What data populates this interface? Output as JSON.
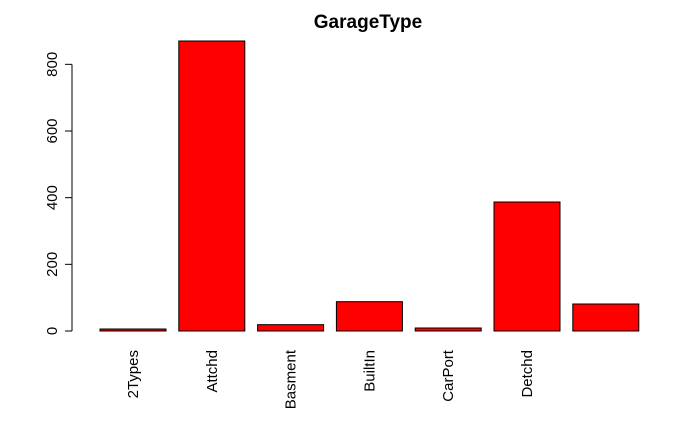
{
  "chart_data": {
    "type": "bar",
    "title": "GarageType",
    "xlabel": "",
    "ylabel": "",
    "categories": [
      "2Types",
      "Attchd",
      "Basment",
      "BuiltIn",
      "CarPort",
      "Detchd",
      ""
    ],
    "values": [
      6,
      870,
      19,
      88,
      9,
      387,
      81
    ],
    "ylim": [
      0,
      870
    ],
    "yticks": [
      0,
      200,
      400,
      600,
      800
    ],
    "bar_color": "#ff0000",
    "bar_edge_color": "#000000",
    "grid": false,
    "legend": "none"
  }
}
